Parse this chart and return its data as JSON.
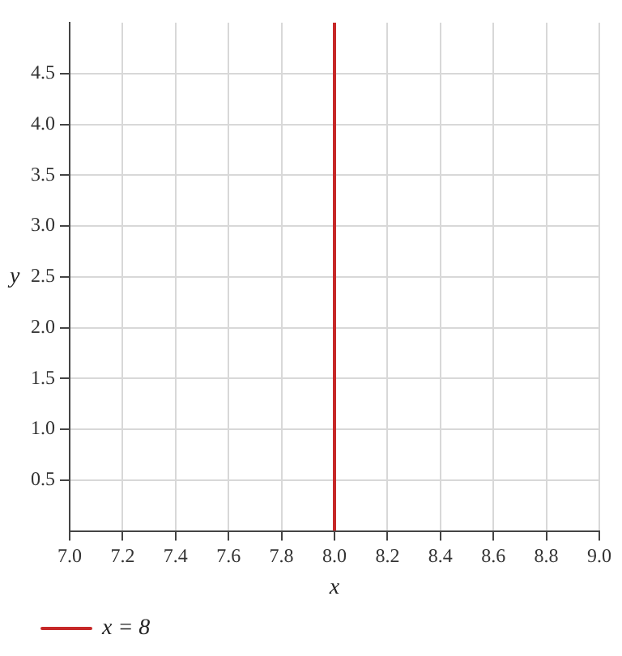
{
  "chart_data": {
    "type": "line",
    "xlabel": "x",
    "ylabel": "y",
    "xlim": [
      7.0,
      9.0
    ],
    "xticks": [
      {
        "value": 7.0,
        "label": "7.0"
      },
      {
        "value": 7.2,
        "label": "7.2"
      },
      {
        "value": 7.4,
        "label": "7.4"
      },
      {
        "value": 7.6,
        "label": "7.6"
      },
      {
        "value": 7.8,
        "label": "7.8"
      },
      {
        "value": 8.0,
        "label": "8.0"
      },
      {
        "value": 8.2,
        "label": "8.2"
      },
      {
        "value": 8.4,
        "label": "8.4"
      },
      {
        "value": 8.6,
        "label": "8.6"
      },
      {
        "value": 8.8,
        "label": "8.8"
      },
      {
        "value": 9.0,
        "label": "9.0"
      }
    ],
    "ylim": [
      0,
      5
    ],
    "yticks": [
      0.5,
      {
        "value": 1.0,
        "label": "1.0"
      },
      1.5,
      {
        "value": 2.0,
        "label": "2.0"
      },
      2.5,
      {
        "value": 3.0,
        "label": "3.0"
      },
      3.5,
      {
        "value": 4.0,
        "label": "4.0"
      },
      4.5
    ],
    "series": [
      {
        "name": "x = 8",
        "color": "#c62828",
        "x": [
          8,
          8
        ],
        "values": [
          0,
          5
        ]
      }
    ],
    "grid": true,
    "legend": "bottom left",
    "marker": "none",
    "line_style": "solid"
  }
}
